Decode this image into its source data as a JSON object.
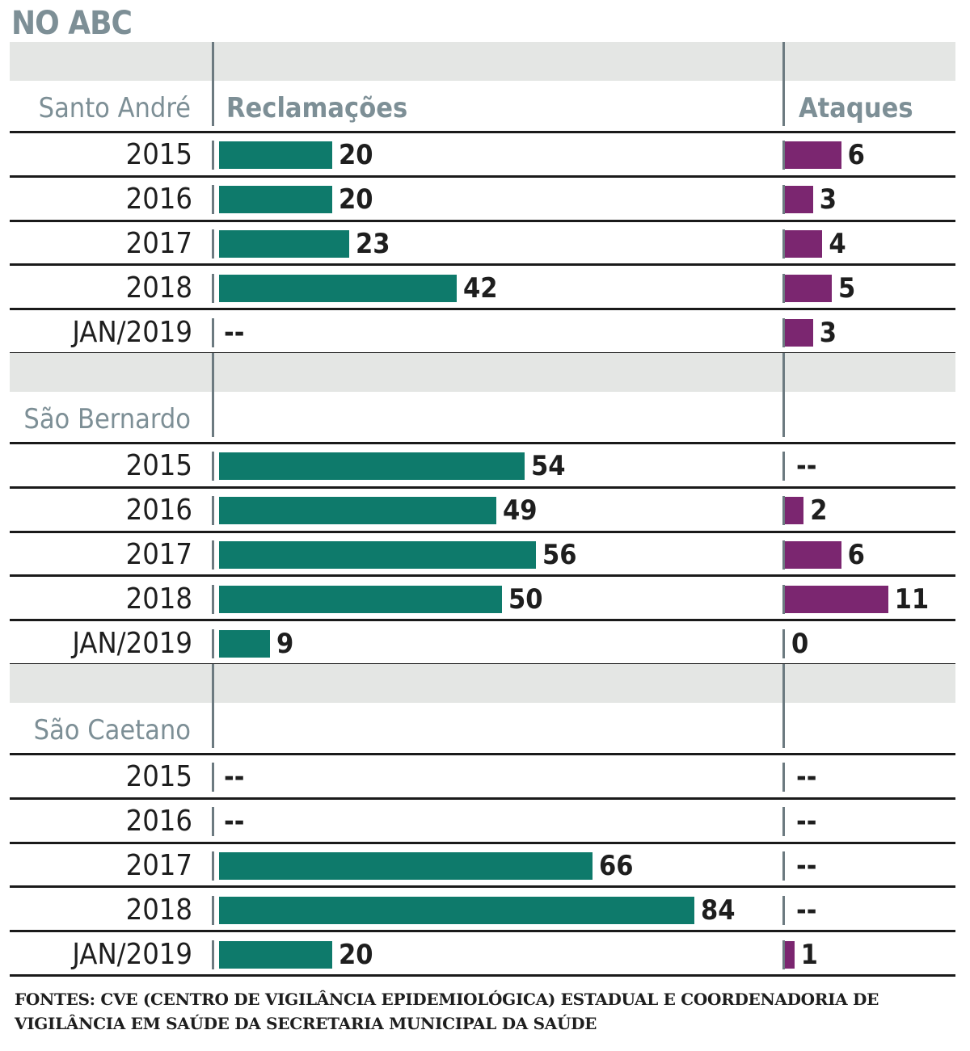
{
  "title": "NO ABC",
  "source": "FONTES: CVE (CENTRO DE VIGILÂNCIA EPIDEMIOLÓGICA) ESTADUAL E COORDENADORIA DE VIGILÂNCIA EM SAÚDE DA SECRETARIA MUNICIPAL DA SAÚDE",
  "colors": {
    "reclamacoes": "#0e7a6b",
    "ataques": "#7b2670",
    "band": "#e4e6e4"
  },
  "chart_data": {
    "type": "bar",
    "orientation": "horizontal",
    "columns": [
      "Reclamações",
      "Ataques"
    ],
    "missing_label": "--",
    "sections": [
      {
        "name": "Santo André",
        "rows": [
          {
            "year": "2015",
            "reclamacoes": 20,
            "ataques": 6
          },
          {
            "year": "2016",
            "reclamacoes": 20,
            "ataques": 3
          },
          {
            "year": "2017",
            "reclamacoes": 23,
            "ataques": 4
          },
          {
            "year": "2018",
            "reclamacoes": 42,
            "ataques": 5
          },
          {
            "year": "JAN/2019",
            "reclamacoes": null,
            "ataques": 3
          }
        ]
      },
      {
        "name": "São Bernardo",
        "rows": [
          {
            "year": "2015",
            "reclamacoes": 54,
            "ataques": null
          },
          {
            "year": "2016",
            "reclamacoes": 49,
            "ataques": 2
          },
          {
            "year": "2017",
            "reclamacoes": 56,
            "ataques": 6
          },
          {
            "year": "2018",
            "reclamacoes": 50,
            "ataques": 11
          },
          {
            "year": "JAN/2019",
            "reclamacoes": 9,
            "ataques": 0
          }
        ]
      },
      {
        "name": "São Caetano",
        "rows": [
          {
            "year": "2015",
            "reclamacoes": null,
            "ataques": null
          },
          {
            "year": "2016",
            "reclamacoes": null,
            "ataques": null
          },
          {
            "year": "2017",
            "reclamacoes": 66,
            "ataques": null
          },
          {
            "year": "2018",
            "reclamacoes": 84,
            "ataques": null
          },
          {
            "year": "JAN/2019",
            "reclamacoes": 20,
            "ataques": 1
          }
        ]
      }
    ]
  }
}
